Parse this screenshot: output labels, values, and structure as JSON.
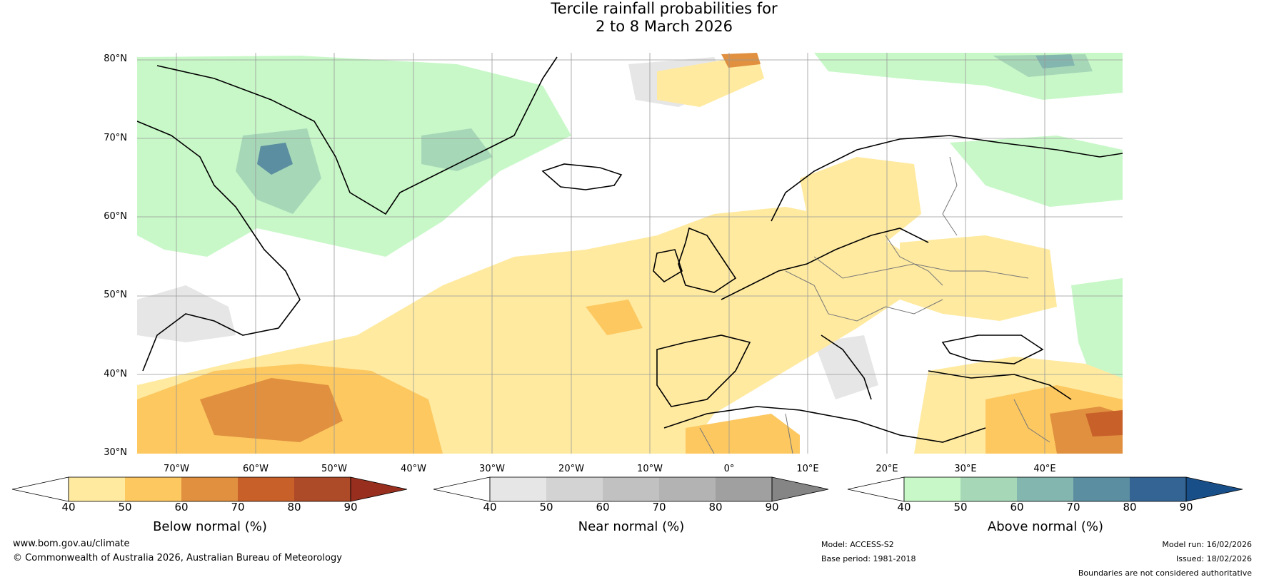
{
  "title": {
    "line1": "Tercile rainfall probabilities for",
    "line2": "2 to 8 March 2026"
  },
  "map": {
    "lat_labels": [
      "80°N",
      "70°N",
      "60°N",
      "50°N",
      "40°N",
      "30°N"
    ],
    "lon_labels": [
      "70°W",
      "60°W",
      "50°W",
      "40°W",
      "30°W",
      "20°W",
      "10°W",
      "0°",
      "10°E",
      "20°E",
      "30°E",
      "40°E"
    ]
  },
  "colorbars": [
    {
      "name": "below",
      "label": "Below normal (%)",
      "ticks": [
        "40",
        "50",
        "60",
        "70",
        "80",
        "90"
      ],
      "colors": [
        "#ffffff",
        "#ffeaa0",
        "#fdc860",
        "#e0903f",
        "#c8602a",
        "#ad4a27",
        "#982f1e"
      ]
    },
    {
      "name": "near",
      "label": "Near normal (%)",
      "ticks": [
        "40",
        "50",
        "60",
        "70",
        "80",
        "90"
      ],
      "colors": [
        "#ffffff",
        "#e6e6e6",
        "#d3d3d3",
        "#c1c1c1",
        "#b3b3b3",
        "#a0a0a0",
        "#858585"
      ]
    },
    {
      "name": "above",
      "label": "Above normal (%)",
      "ticks": [
        "40",
        "50",
        "60",
        "70",
        "80",
        "90"
      ],
      "colors": [
        "#ffffff",
        "#c8f8c8",
        "#a6d8b8",
        "#83b6ae",
        "#5b8ea0",
        "#346494",
        "#194f88"
      ]
    }
  ],
  "footer": {
    "website": "www.bom.gov.au/climate",
    "copyright": "© Commonwealth of Australia 2026, Australian Bureau of Meteorology",
    "model": "Model: ACCESS-S2",
    "base_period": "Base period: 1981-2018",
    "model_run": "Model run: 16/02/2026",
    "issued": "Issued: 18/02/2026",
    "disclaimer": "Boundaries are not considered authoritative"
  }
}
